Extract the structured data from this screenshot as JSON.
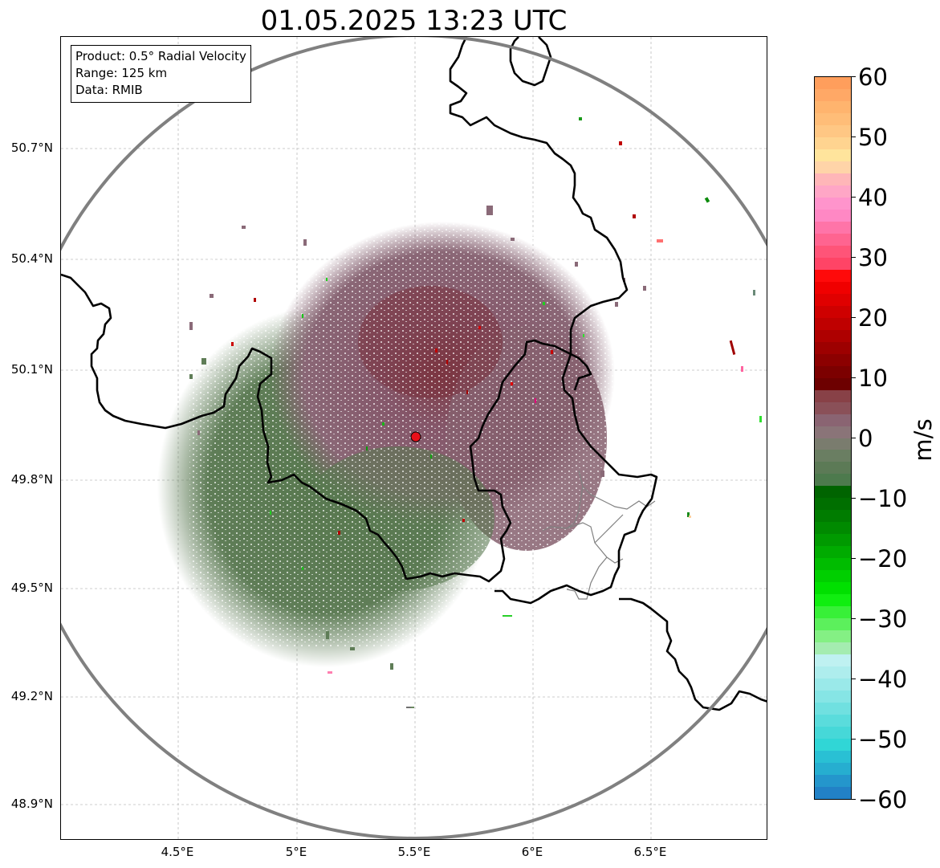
{
  "title": "01.05.2025 13:23 UTC",
  "info_box": {
    "product": "Product: 0.5° Radial Velocity",
    "range": "Range: 125 km",
    "data": "Data: RMIB"
  },
  "axes": {
    "y_ticks": [
      "50.7°N",
      "50.4°N",
      "50.1°N",
      "49.8°N",
      "49.5°N",
      "49.2°N",
      "48.9°N"
    ],
    "x_ticks": [
      "4.5°E",
      "5°E",
      "5.5°E",
      "6°E",
      "6.5°E"
    ],
    "lon_range": [
      4.0,
      7.0
    ],
    "lat_range": [
      48.8,
      51.0
    ],
    "grid": true
  },
  "radar": {
    "site_lon": 5.5,
    "site_lat": 49.915,
    "range_km": 125,
    "site_marker_color": "#e8101a",
    "range_ring_color": "#808080"
  },
  "colorbar": {
    "unit": "m/s",
    "vmin": -60,
    "vmax": 60,
    "tick_labels": [
      "60",
      "50",
      "40",
      "30",
      "20",
      "10",
      "0",
      "−10",
      "−20",
      "−30",
      "−40",
      "−50",
      "−60"
    ],
    "colors_top_to_bottom": [
      "#ff9e5c",
      "#ffa866",
      "#ffb46e",
      "#ffbd78",
      "#ffc784",
      "#ffd490",
      "#ffe49c",
      "#ffd4a8",
      "#ffb6b8",
      "#ffa6c6",
      "#ff94cc",
      "#ff88c4",
      "#ff74a8",
      "#ff6490",
      "#ff5478",
      "#ff4466",
      "#ff0a0a",
      "#f00000",
      "#e00000",
      "#cf0000",
      "#bf0000",
      "#ae0000",
      "#9d0000",
      "#8c0000",
      "#7c0000",
      "#6d0000",
      "#884147",
      "#8a5058",
      "#8a6472",
      "#8a7478",
      "#7a7c6e",
      "#6a7e62",
      "#5c7a56",
      "#4d7a4d",
      "#006400",
      "#006f00",
      "#007c00",
      "#008a00",
      "#009a00",
      "#00ab00",
      "#00bc00",
      "#00cf00",
      "#00e000",
      "#10ee10",
      "#38f038",
      "#5cf05c",
      "#84f084",
      "#a4ecb0",
      "#bff1f1",
      "#aeeded",
      "#9ae9e9",
      "#86e5e5",
      "#70e0e0",
      "#5adcdc",
      "#46d8d8",
      "#30d6d6",
      "#29c0d4",
      "#26aed0",
      "#2496cc",
      "#2281c6"
    ],
    "velocity_palette": {
      "inbound_green": "#5e7c56",
      "outbound_mauve": "#836471",
      "outbound_dark": "#7a2d35"
    }
  }
}
